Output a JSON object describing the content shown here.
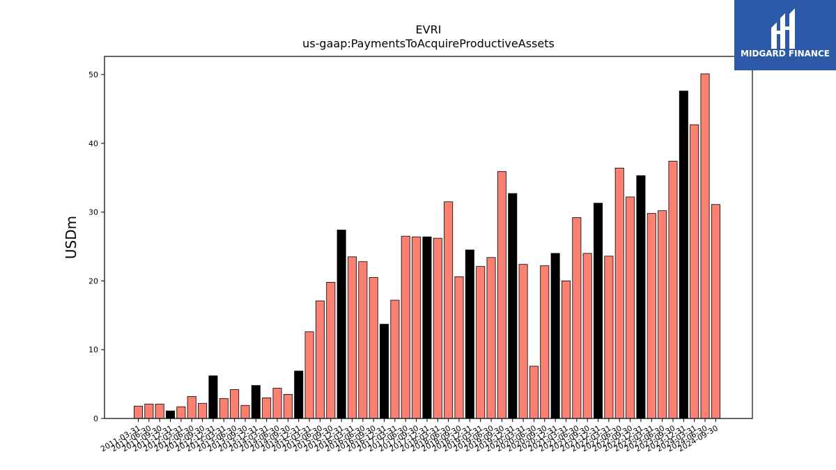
{
  "brand": {
    "name": "MIDGARD FINANCE",
    "bg_color": "#2c5aa8"
  },
  "chart_data": {
    "type": "bar",
    "title": "EVRI",
    "subtitle": "us-gaap:PaymentsToAcquireProductiveAssets",
    "xlabel": "",
    "ylabel": "USDm",
    "ylim": [
      0,
      52.6
    ],
    "yticks": [
      0,
      10,
      20,
      30,
      40,
      50
    ],
    "grid": false,
    "colors": {
      "quarter": "#fa8072",
      "annual": "#000000",
      "edge": "#000000"
    },
    "categories": [
      "2011-03-31",
      "2011-06-30",
      "2011-09-30",
      "2011-12-31",
      "2012-03-31",
      "2012-06-30",
      "2012-09-30",
      "2012-12-31",
      "2013-03-31",
      "2013-06-30",
      "2013-09-30",
      "2013-12-31",
      "2014-03-31",
      "2014-06-30",
      "2014-09-30",
      "2014-12-31",
      "2015-03-31",
      "2015-06-30",
      "2015-09-30",
      "2015-12-31",
      "2016-03-31",
      "2016-06-30",
      "2016-09-30",
      "2016-12-31",
      "2017-03-31",
      "2017-06-30",
      "2017-09-30",
      "2017-12-31",
      "2018-03-31",
      "2018-06-30",
      "2018-09-30",
      "2018-12-31",
      "2019-03-31",
      "2019-06-30",
      "2019-09-30",
      "2019-12-31",
      "2020-03-31",
      "2020-06-30",
      "2020-09-30",
      "2020-12-31",
      "2021-03-31",
      "2021-06-30",
      "2021-09-30",
      "2021-12-31",
      "2022-03-31",
      "2022-06-30",
      "2022-09-30",
      "2022-12-31",
      "2023-03-31",
      "2023-06-30",
      "2023-09-30",
      "2023-12-31",
      "2024-03-31",
      "2024-06-30",
      "2024-09-30"
    ],
    "values": [
      1.8,
      2.1,
      2.1,
      1.1,
      1.7,
      3.2,
      2.2,
      6.2,
      2.9,
      4.2,
      1.9,
      4.8,
      3.0,
      4.4,
      3.5,
      6.9,
      12.6,
      17.1,
      19.8,
      27.4,
      23.5,
      22.8,
      20.5,
      13.7,
      17.2,
      26.5,
      26.4,
      26.4,
      26.2,
      31.5,
      20.6,
      24.5,
      22.1,
      23.4,
      35.9,
      32.7,
      22.4,
      7.6,
      22.2,
      24.0,
      20.0,
      29.2,
      24.0,
      31.3,
      23.6,
      36.4,
      32.2,
      35.3,
      29.8,
      30.2,
      37.4,
      47.6,
      42.7,
      50.1,
      31.1
    ],
    "annual": [
      false,
      false,
      false,
      true,
      false,
      false,
      false,
      true,
      false,
      false,
      false,
      true,
      false,
      false,
      false,
      true,
      false,
      false,
      false,
      true,
      false,
      false,
      false,
      true,
      false,
      false,
      false,
      true,
      false,
      false,
      false,
      true,
      false,
      false,
      false,
      true,
      false,
      false,
      false,
      true,
      false,
      false,
      false,
      true,
      false,
      false,
      false,
      true,
      false,
      false,
      false,
      true,
      false,
      false,
      false
    ]
  }
}
